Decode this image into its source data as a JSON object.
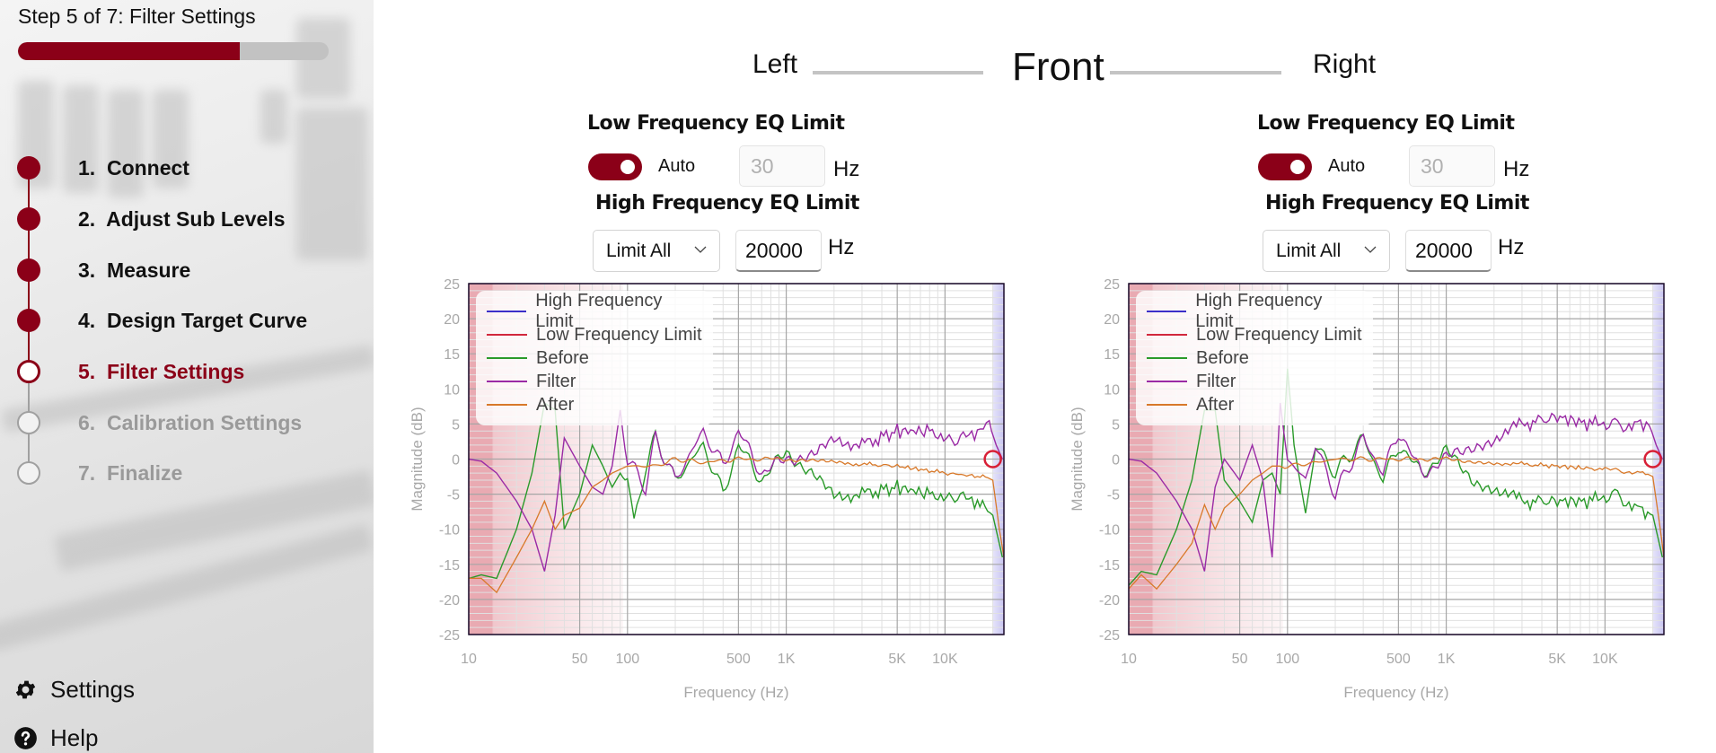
{
  "sidebar": {
    "title": "Step 5 of 7: Filter Settings",
    "progress_percent": 71.4,
    "steps": [
      {
        "label": "1.  Connect",
        "state": "done"
      },
      {
        "label": "2.  Adjust Sub Levels",
        "state": "done"
      },
      {
        "label": "3.  Measure",
        "state": "done"
      },
      {
        "label": "4.  Design Target Curve",
        "state": "done"
      },
      {
        "label": "5.  Filter Settings",
        "state": "current"
      },
      {
        "label": "6.  Calibration Settings",
        "state": "todo"
      },
      {
        "label": "7.  Finalize",
        "state": "todo"
      }
    ],
    "settings_label": "Settings",
    "help_label": "Help"
  },
  "header": {
    "left_label": "Left",
    "group_label": "Front",
    "right_label": "Right"
  },
  "channels": [
    {
      "name": "left",
      "low_title": "Low Frequency EQ Limit",
      "auto_toggle": true,
      "auto_label": "Auto",
      "low_value": "30",
      "low_unit": "Hz",
      "high_title": "High Frequency EQ Limit",
      "high_mode": "Limit All",
      "high_value": "20000",
      "high_unit": "Hz"
    },
    {
      "name": "right",
      "low_title": "Low Frequency EQ Limit",
      "auto_toggle": true,
      "auto_label": "Auto",
      "low_value": "30",
      "low_unit": "Hz",
      "high_title": "High Frequency EQ Limit",
      "high_mode": "Limit All",
      "high_value": "20000",
      "high_unit": "Hz"
    }
  ],
  "colors": {
    "accent": "#8b0018",
    "high_limit": "#3b2fc9",
    "low_limit": "#d1283d",
    "before": "#2a9a2a",
    "filter": "#9a2aa5",
    "after": "#d8792a"
  },
  "chart_data": [
    {
      "type": "line",
      "title": "Left",
      "xlabel": "Frequency (Hz)",
      "ylabel": "Magnitude (dB)",
      "xscale": "log",
      "xlim": [
        10,
        23500
      ],
      "ylim": [
        -25,
        25
      ],
      "x_ticks": [
        "10",
        "50",
        "100",
        "500",
        "1K",
        "5K",
        "10K"
      ],
      "y_ticks": [
        "25",
        "20",
        "15",
        "10",
        "5",
        "0",
        "-5",
        "-10",
        "-15",
        "-20",
        "-25"
      ],
      "grid": true,
      "legend_position": "upper-left",
      "legend": [
        "High Frequency Limit",
        "Low Frequency Limit",
        "Before",
        "Filter",
        "After"
      ],
      "low_limit_shade_hz": 100,
      "high_limit_marker_hz": 20000,
      "series": [
        {
          "name": "Before",
          "x": [
            10,
            12,
            15,
            20,
            25,
            30,
            35,
            40,
            50,
            60,
            70,
            80,
            90,
            100,
            110,
            130,
            150,
            200,
            300,
            400,
            500,
            700,
            1000,
            1500,
            2000,
            3000,
            5000,
            8000,
            12000,
            16000,
            20000,
            23000
          ],
          "y": [
            -17,
            -16.5,
            -17,
            -10,
            -2,
            8,
            7,
            -10,
            -5,
            2,
            -1,
            -4,
            -2,
            -2,
            -9.5,
            -1,
            3,
            -3,
            2,
            -5,
            2,
            -3,
            1,
            -2,
            -5,
            -5,
            -4,
            -5,
            -5,
            -6,
            -8,
            -14
          ]
        },
        {
          "name": "Filter",
          "x": [
            10,
            12,
            15,
            20,
            25,
            30,
            35,
            40,
            50,
            60,
            70,
            80,
            90,
            100,
            130,
            150,
            200,
            300,
            400,
            500,
            700,
            1000,
            1500,
            2000,
            3000,
            5000,
            8000,
            12000,
            16000,
            19000,
            21000,
            23000
          ],
          "y": [
            0,
            -0.3,
            -2,
            -6,
            -10,
            -16,
            -8,
            3,
            -1,
            -4,
            -5,
            -1,
            7,
            0,
            -4,
            3,
            -3,
            4,
            -1,
            4,
            -2,
            0,
            1,
            3,
            2,
            4,
            4,
            3,
            4,
            5,
            2,
            0
          ]
        },
        {
          "name": "After",
          "x": [
            10,
            12,
            15,
            20,
            25,
            30,
            35,
            40,
            50,
            60,
            70,
            80,
            100,
            150,
            200,
            300,
            500,
            1000,
            2000,
            5000,
            10000,
            18000,
            20000,
            22000,
            23500
          ],
          "y": [
            -17,
            -17,
            -19,
            -14,
            -10,
            -6,
            -10,
            -8,
            -7,
            -4,
            -3,
            -2,
            -1,
            -1,
            0,
            -0.5,
            0,
            0,
            -0.5,
            -1,
            -2,
            -2.5,
            -3,
            -10,
            -14
          ]
        }
      ]
    },
    {
      "type": "line",
      "title": "Right",
      "xlabel": "Frequency (Hz)",
      "ylabel": "Magnitude (dB)",
      "xscale": "log",
      "xlim": [
        10,
        23500
      ],
      "ylim": [
        -25,
        25
      ],
      "x_ticks": [
        "10",
        "50",
        "100",
        "500",
        "1K",
        "5K",
        "10K"
      ],
      "y_ticks": [
        "25",
        "20",
        "15",
        "10",
        "5",
        "0",
        "-5",
        "-10",
        "-15",
        "-20",
        "-25"
      ],
      "grid": true,
      "legend_position": "upper-left",
      "legend": [
        "High Frequency Limit",
        "Low Frequency Limit",
        "Before",
        "Filter",
        "After"
      ],
      "low_limit_shade_hz": 100,
      "high_limit_marker_hz": 20000,
      "series": [
        {
          "name": "Before",
          "x": [
            10,
            12,
            15,
            20,
            25,
            30,
            35,
            40,
            50,
            60,
            70,
            80,
            90,
            100,
            110,
            130,
            150,
            200,
            300,
            400,
            500,
            700,
            1000,
            1500,
            2000,
            3000,
            5000,
            8000,
            12000,
            16000,
            20000,
            23000
          ],
          "y": [
            -18,
            -16,
            -16.5,
            -10,
            -3,
            7,
            7,
            -3,
            -6,
            -9,
            -3,
            -2,
            -5,
            13,
            2,
            -8,
            2,
            -2,
            3,
            -3,
            2,
            -2,
            1,
            -3,
            -4,
            -6,
            -6,
            -6,
            -5,
            -7,
            -8,
            -14
          ]
        },
        {
          "name": "Filter",
          "x": [
            10,
            12,
            15,
            20,
            25,
            30,
            35,
            40,
            50,
            60,
            70,
            80,
            90,
            100,
            130,
            150,
            200,
            300,
            400,
            500,
            700,
            1000,
            1500,
            2000,
            3000,
            5000,
            8000,
            12000,
            16000,
            19000,
            21000,
            23000
          ],
          "y": [
            0,
            -0.3,
            -2,
            -6,
            -10,
            -16,
            -4,
            0,
            -3,
            2,
            -3,
            -14,
            8,
            0,
            -3,
            2,
            -5,
            3,
            -2,
            4,
            -2,
            0,
            2,
            3,
            5,
            6,
            5,
            5,
            5,
            5,
            2,
            0
          ]
        },
        {
          "name": "After",
          "x": [
            10,
            12,
            15,
            20,
            25,
            30,
            35,
            40,
            50,
            60,
            70,
            80,
            100,
            150,
            200,
            300,
            500,
            1000,
            2000,
            5000,
            10000,
            18000,
            20000,
            22000,
            23500
          ],
          "y": [
            -18.5,
            -16.5,
            -18.5,
            -15,
            -12,
            -6.5,
            -10,
            -7,
            -5,
            -3,
            -2,
            -1,
            -1,
            -0.5,
            0,
            0,
            0,
            0,
            -0.5,
            -1,
            -1.5,
            -2,
            -2.5,
            -9,
            -14
          ]
        }
      ]
    }
  ]
}
